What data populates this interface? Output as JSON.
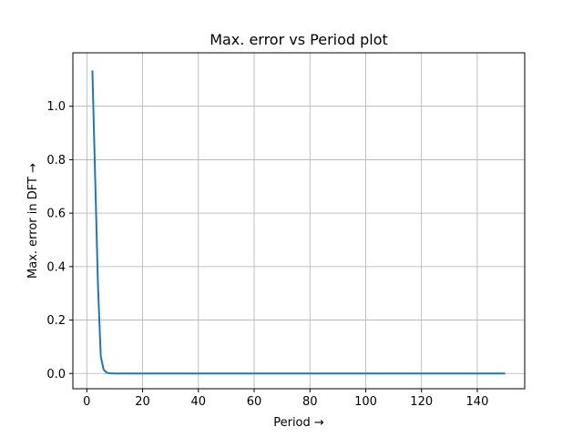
{
  "chart_data": {
    "type": "line",
    "title": "Max. error vs Period plot",
    "xlabel": "Period →",
    "ylabel": "Max. error in DFT →",
    "xlim": [
      -5,
      157
    ],
    "ylim": [
      -0.057,
      1.2
    ],
    "xticks": [
      0,
      20,
      40,
      60,
      80,
      100,
      120,
      140
    ],
    "yticks": [
      0.0,
      0.2,
      0.4,
      0.6,
      0.8,
      1.0
    ],
    "ytick_labels": [
      "0.0",
      "0.2",
      "0.4",
      "0.6",
      "0.8",
      "1.0"
    ],
    "grid": true,
    "series": [
      {
        "color": "#1f77b4",
        "x": [
          2,
          3,
          4,
          5,
          6,
          7,
          8,
          10,
          20,
          40,
          60,
          80,
          100,
          120,
          140,
          150
        ],
        "y": [
          1.134,
          0.73,
          0.33,
          0.065,
          0.015,
          0.004,
          0.001,
          0.0,
          0.0,
          0.0,
          0.0,
          0.0,
          0.0,
          0.0,
          0.0,
          0.0
        ]
      }
    ]
  }
}
